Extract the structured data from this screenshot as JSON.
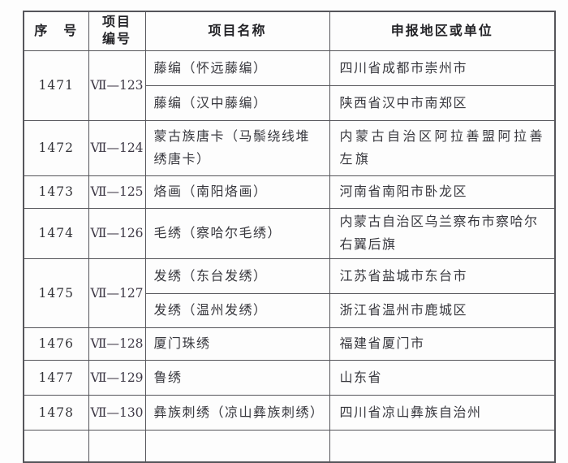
{
  "table": {
    "header": {
      "serial": "序　号",
      "code_line1": "项目",
      "code_line2": "编号",
      "name": "项目名称",
      "region": "申报地区或单位"
    },
    "rows": [
      {
        "serial": "1471",
        "code": "Ⅶ—123",
        "entries": [
          {
            "name": "藤编（怀远藤编）",
            "region": "四川省成都市崇州市"
          },
          {
            "name": "藤编（汉中藤编）",
            "region": "陕西省汉中市南郑区"
          }
        ]
      },
      {
        "serial": "1472",
        "code": "Ⅶ—124",
        "entries": [
          {
            "name": "蒙古族唐卡（马鬃绕线堆\n绣唐卡）",
            "region": "内蒙古自治区阿拉善盟阿拉善\n左旗"
          }
        ]
      },
      {
        "serial": "1473",
        "code": "Ⅶ—125",
        "entries": [
          {
            "name": "烙画（南阳烙画）",
            "region": "河南省南阳市卧龙区"
          }
        ]
      },
      {
        "serial": "1474",
        "code": "Ⅶ—126",
        "entries": [
          {
            "name": "毛绣（察哈尔毛绣）",
            "region": "内蒙古自治区乌兰察布市察哈尔\n右翼后旗"
          }
        ]
      },
      {
        "serial": "1475",
        "code": "Ⅶ—127",
        "entries": [
          {
            "name": "发绣（东台发绣）",
            "region": "江苏省盐城市东台市"
          },
          {
            "name": "发绣（温州发绣）",
            "region": "浙江省温州市鹿城区"
          }
        ]
      },
      {
        "serial": "1476",
        "code": "Ⅶ—128",
        "entries": [
          {
            "name": "厦门珠绣",
            "region": "福建省厦门市"
          }
        ]
      },
      {
        "serial": "1477",
        "code": "Ⅶ—129",
        "entries": [
          {
            "name": "鲁绣",
            "region": "山东省"
          }
        ]
      },
      {
        "serial": "1478",
        "code": "Ⅶ—130",
        "entries": [
          {
            "name": "彝族刺绣（凉山彝族刺绣）",
            "region": "四川省凉山彝族自治州"
          }
        ]
      }
    ]
  }
}
